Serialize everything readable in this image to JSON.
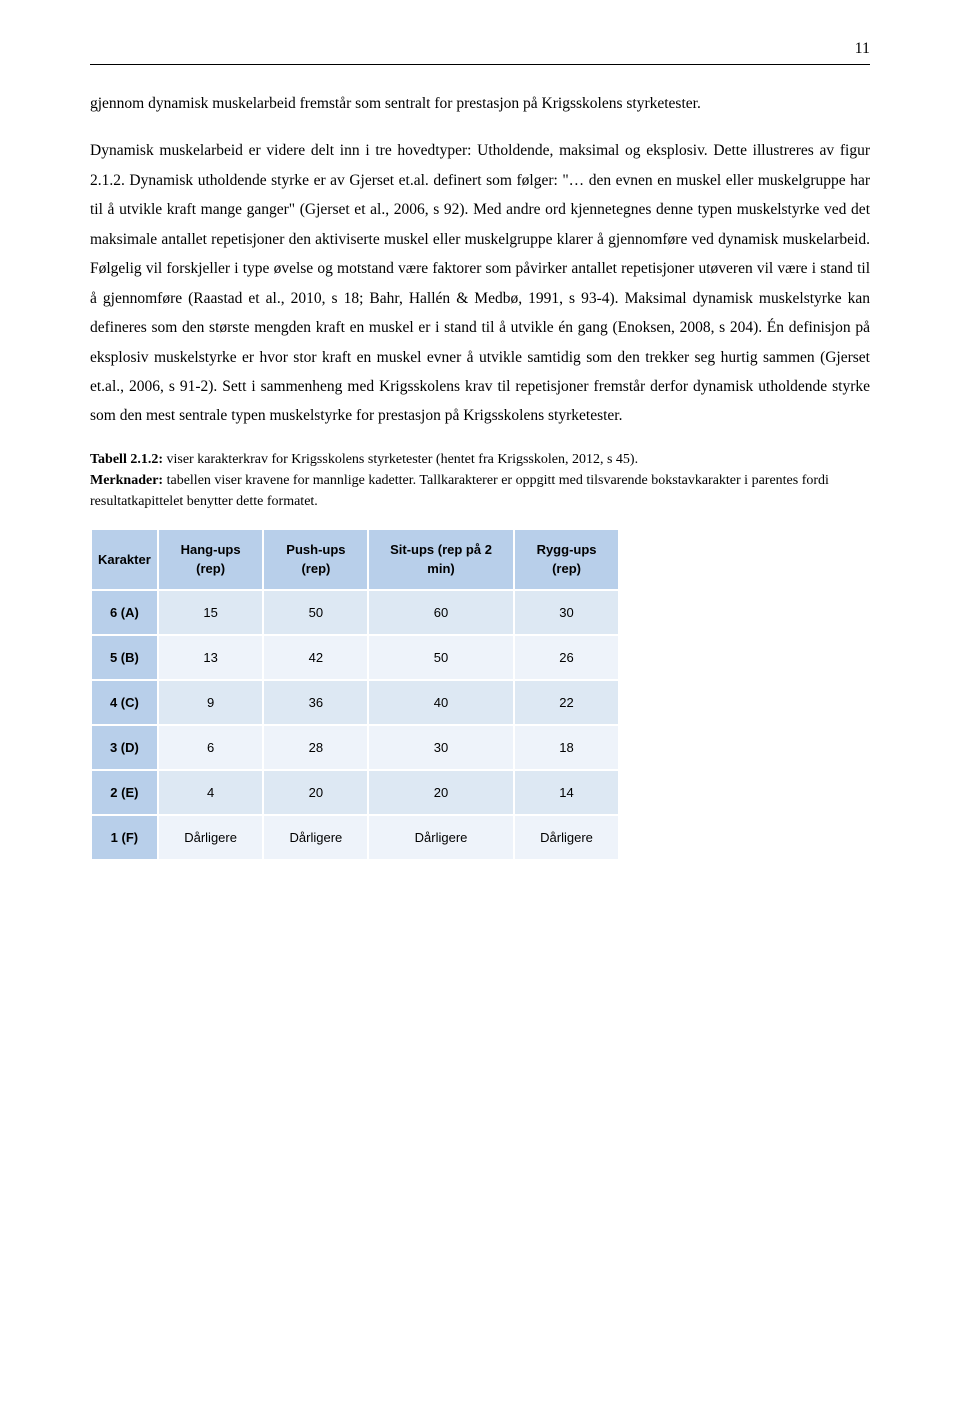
{
  "page_number": "11",
  "paragraphs": {
    "p1": "gjennom dynamisk muskelarbeid fremstår som sentralt for prestasjon på Krigsskolens styrketester.",
    "p2": "Dynamisk muskelarbeid er videre delt inn i tre hovedtyper: Utholdende, maksimal og eksplosiv. Dette illustreres av figur 2.1.2. Dynamisk utholdende styrke er av Gjerset et.al. definert som følger: \"… den evnen en muskel eller muskelgruppe har til å utvikle kraft mange ganger\" (Gjerset et al., 2006, s 92). Med andre ord kjennetegnes denne typen muskelstyrke ved det maksimale antallet repetisjoner den aktiviserte muskel eller muskelgruppe klarer å gjennomføre ved dynamisk muskelarbeid. Følgelig vil forskjeller i type øvelse og motstand være faktorer som påvirker antallet repetisjoner utøveren vil være i stand til å gjennomføre (Raastad et al., 2010, s 18; Bahr, Hallén & Medbø, 1991, s 93-4). Maksimal dynamisk muskelstyrke kan defineres som den største mengden kraft en muskel er i stand til å utvikle én gang (Enoksen, 2008, s 204). Én definisjon på eksplosiv muskelstyrke er hvor stor kraft en muskel evner å utvikle samtidig som den trekker seg hurtig sammen (Gjerset et.al., 2006, s 91-2). Sett i sammenheng med Krigsskolens krav til repetisjoner fremstår derfor dynamisk utholdende styrke som den mest sentrale typen muskelstyrke for prestasjon på Krigsskolens styrketester."
  },
  "caption": {
    "title_label": "Tabell 2.1.2:",
    "title_rest": " viser karakterkrav for Krigsskolens styrketester (hentet fra Krigsskolen, 2012, s 45).",
    "note_label": "Merknader:",
    "note_rest": " tabellen viser kravene for mannlige kadetter. Tallkarakterer er oppgitt med tilsvarende bokstavkarakter i parentes fordi resultatkapittelet benytter dette formatet."
  },
  "table": {
    "columns": [
      "Karakter",
      "Hang-ups (rep)",
      "Push-ups (rep)",
      "Sit-ups (rep på 2 min)",
      "Rygg-ups (rep)"
    ],
    "rows": [
      [
        "6 (A)",
        "15",
        "50",
        "60",
        "30"
      ],
      [
        "5 (B)",
        "13",
        "42",
        "50",
        "26"
      ],
      [
        "4 (C)",
        "9",
        "36",
        "40",
        "22"
      ],
      [
        "3 (D)",
        "6",
        "28",
        "30",
        "18"
      ],
      [
        "2 (E)",
        "4",
        "20",
        "20",
        "14"
      ],
      [
        "1 (F)",
        "Dårligere",
        "Dårligere",
        "Dårligere",
        "Dårligere"
      ]
    ],
    "header_bg": "#b8cfea",
    "row_odd_bg": "#dde8f3",
    "row_even_bg": "#eef3fa",
    "border_color": "#ffffff",
    "font_family": "Arial",
    "font_size_pt": 10
  }
}
